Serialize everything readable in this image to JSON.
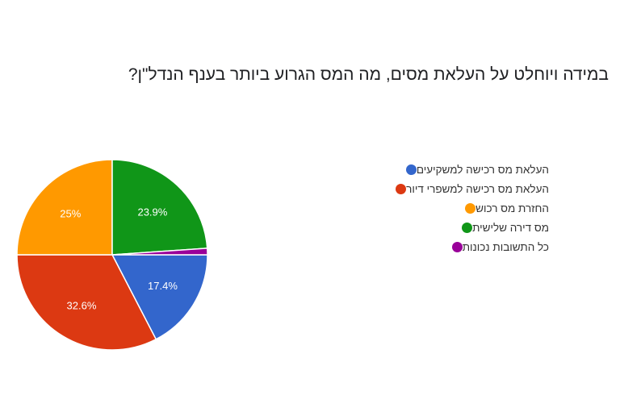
{
  "chart_data": {
    "type": "pie",
    "title": "במידה ויוחלט על העלאת מסים, מה המס הגרוע ביותר בענף הנדל\"ן?",
    "slices": [
      {
        "label": "העלאת מס רכישה למשקיעים",
        "value": 17.4,
        "display": "17.4%",
        "color": "#3366cc"
      },
      {
        "label": "העלאת מס רכישה למשפרי דיור",
        "value": 32.6,
        "display": "32.6%",
        "color": "#dc3912"
      },
      {
        "label": "החזרת מס רכוש",
        "value": 25.0,
        "display": "25%",
        "color": "#ff9900"
      },
      {
        "label": "מס דירה שלישית",
        "value": 23.9,
        "display": "23.9%",
        "color": "#109618"
      },
      {
        "label": "כל התשובות נכונות",
        "value": 1.1,
        "display": "",
        "color": "#990099"
      }
    ],
    "start_angle_deg": 90,
    "direction": "clockwise",
    "legend_position": "right"
  }
}
